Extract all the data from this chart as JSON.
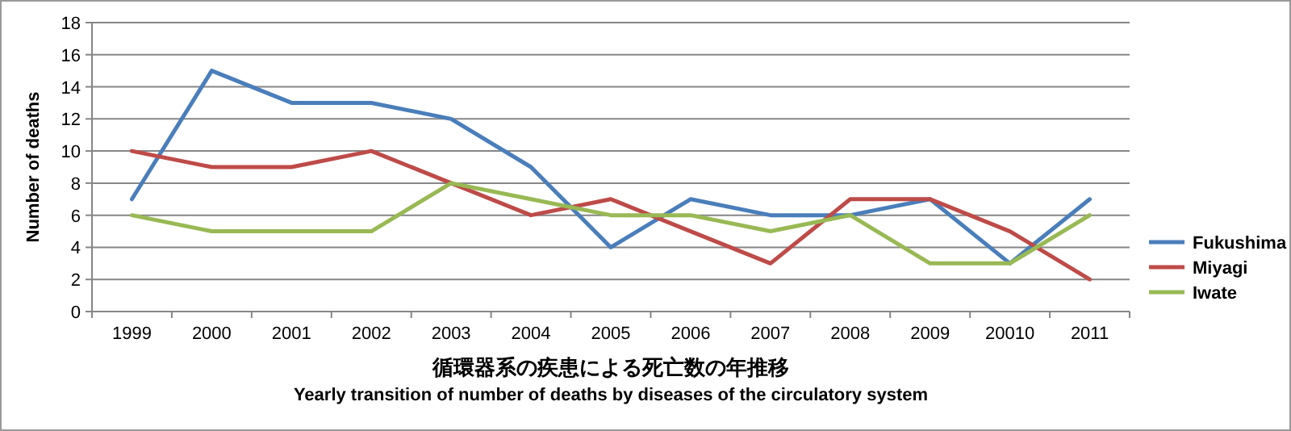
{
  "chart_data": {
    "type": "line",
    "title": "循環器系の疾患による死亡数の年推移",
    "subtitle": "Yearly transition of number of deaths by diseases of the circulatory system",
    "ylabel": "Number of deaths",
    "categories": [
      "1999",
      "2000",
      "2001",
      "2002",
      "2003",
      "2004",
      "2005",
      "2006",
      "2007",
      "2008",
      "2009",
      "20010",
      "2011"
    ],
    "series": [
      {
        "name": "Fukushima",
        "color": "#4a7ebb",
        "values": [
          7,
          15,
          13,
          13,
          12,
          9,
          4,
          7,
          6,
          6,
          7,
          3,
          7
        ]
      },
      {
        "name": "Miyagi",
        "color": "#be4b48",
        "values": [
          10,
          9,
          9,
          10,
          8,
          6,
          7,
          5,
          3,
          7,
          7,
          5,
          2
        ]
      },
      {
        "name": "Iwate",
        "color": "#98b954",
        "values": [
          6,
          5,
          5,
          5,
          8,
          7,
          6,
          6,
          5,
          6,
          3,
          3,
          6
        ]
      }
    ],
    "ylim": [
      0,
      18
    ],
    "yticks": [
      0,
      2,
      4,
      6,
      8,
      10,
      12,
      14,
      16,
      18
    ],
    "grid": "y",
    "legend": "right",
    "marker": "none",
    "line_style": "solid"
  }
}
